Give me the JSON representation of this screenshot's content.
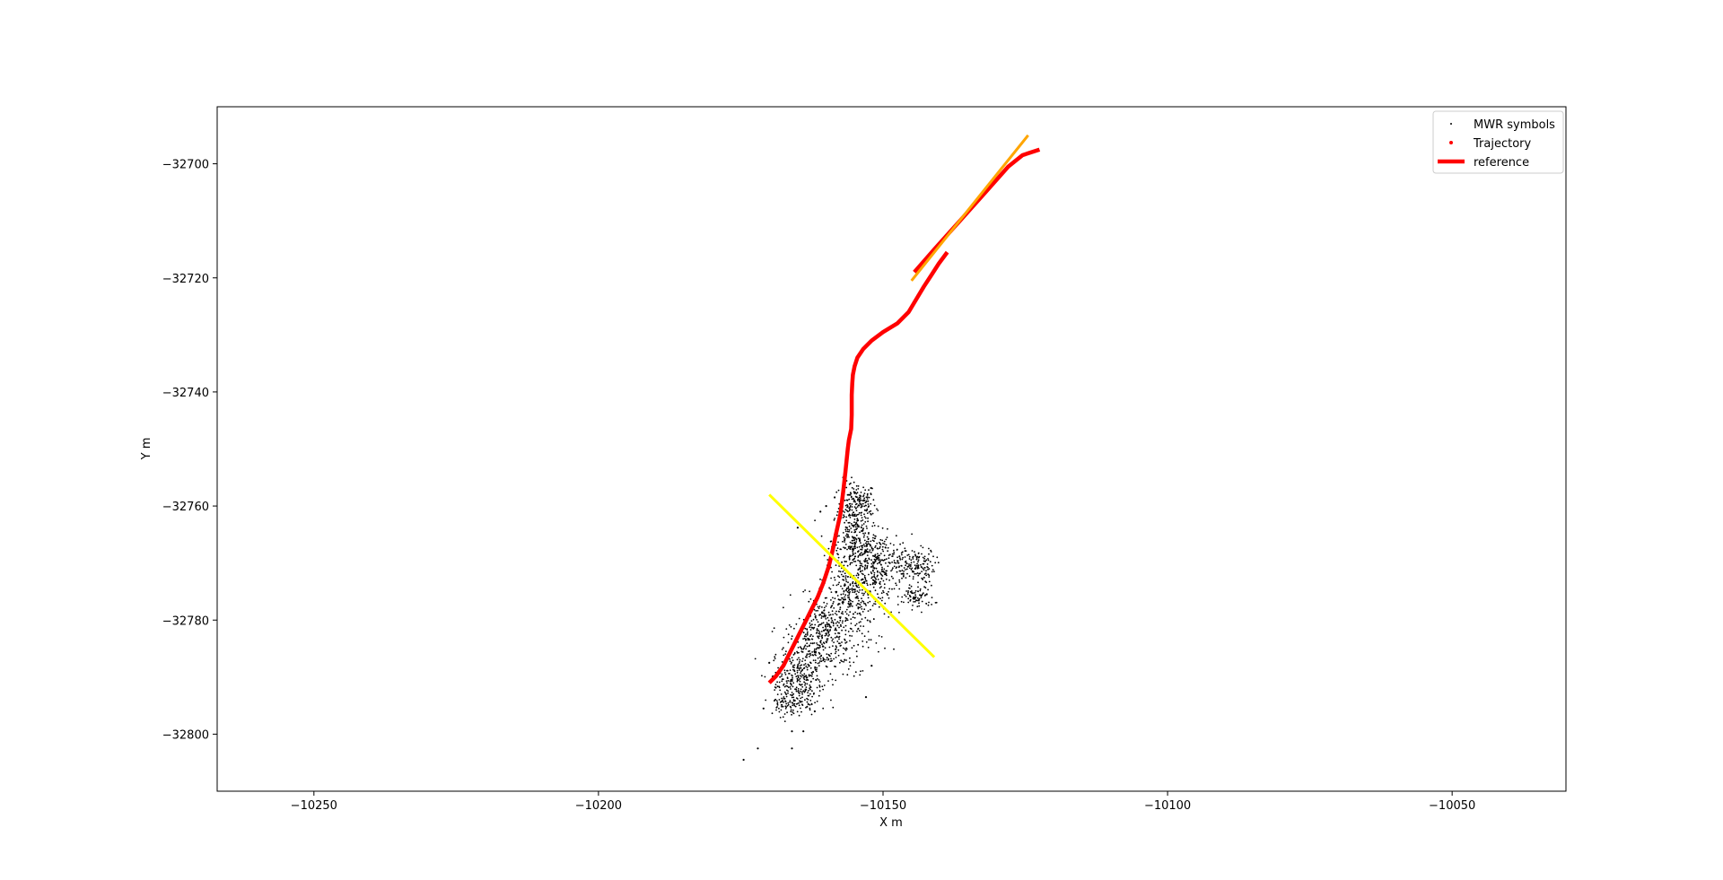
{
  "chart_data": {
    "type": "scatter",
    "title": "",
    "xlabel": "X  m",
    "ylabel": "Y  m",
    "xlim": [
      -10267,
      -10030
    ],
    "ylim": [
      -32810,
      -32690
    ],
    "y_inverted": true,
    "grid": false,
    "legend_position": "top-right",
    "xticks": [
      -10250,
      -10200,
      -10150,
      -10100,
      -10050
    ],
    "yticks": [
      -32700,
      -32720,
      -32740,
      -32760,
      -32780,
      -32800
    ],
    "xtick_labels": [
      "−10250",
      "−10200",
      "−10150",
      "−10100",
      "−10050"
    ],
    "ytick_labels": [
      "−32700",
      "−32720",
      "−32740",
      "−32760",
      "−32780",
      "−32800"
    ],
    "legend": [
      {
        "label": "MWR symbols",
        "kind": "scatter-small",
        "color": "#000000"
      },
      {
        "label": "Trajectory",
        "kind": "scatter",
        "color": "#ff0000"
      },
      {
        "label": "reference",
        "kind": "line",
        "color": "#ff0000"
      }
    ],
    "series": [
      {
        "name": "MWR symbols",
        "kind": "scatter-small",
        "color": "#000000",
        "clusters": [
          {
            "cx": -10154.5,
            "cy": -32759.5,
            "sx": 1.6,
            "sy": 1.8,
            "n": 160
          },
          {
            "cx": -10155.0,
            "cy": -32766.0,
            "sx": 2.0,
            "sy": 3.0,
            "n": 260
          },
          {
            "cx": -10151.0,
            "cy": -32770.0,
            "sx": 3.0,
            "sy": 2.5,
            "n": 300
          },
          {
            "cx": -10144.5,
            "cy": -32770.5,
            "sx": 1.8,
            "sy": 1.5,
            "n": 140
          },
          {
            "cx": -10144.0,
            "cy": -32776.0,
            "sx": 1.5,
            "sy": 1.0,
            "n": 80
          },
          {
            "cx": -10155.0,
            "cy": -32776.0,
            "sx": 3.0,
            "sy": 2.5,
            "n": 260
          },
          {
            "cx": -10160.0,
            "cy": -32781.0,
            "sx": 2.5,
            "sy": 2.5,
            "n": 220
          },
          {
            "cx": -10163.0,
            "cy": -32786.0,
            "sx": 2.5,
            "sy": 2.5,
            "n": 220
          },
          {
            "cx": -10165.0,
            "cy": -32791.0,
            "sx": 2.2,
            "sy": 2.0,
            "n": 180
          },
          {
            "cx": -10166.0,
            "cy": -32794.5,
            "sx": 2.0,
            "sy": 1.2,
            "n": 100
          },
          {
            "cx": -10156.0,
            "cy": -32785.0,
            "sx": 3.0,
            "sy": 3.0,
            "n": 60
          }
        ],
        "points": [
          [
            -10174.5,
            -32804.5
          ],
          [
            -10172.0,
            -32802.5
          ],
          [
            -10166.0,
            -32802.5
          ],
          [
            -10166.0,
            -32799.5
          ],
          [
            -10164.0,
            -32799.5
          ],
          [
            -10165.0,
            -32763.8
          ],
          [
            -10161.0,
            -32761.0
          ],
          [
            -10160.0,
            -32760.0
          ],
          [
            -10158.5,
            -32758.5
          ],
          [
            -10157.0,
            -32755.0
          ],
          [
            -10152.0,
            -32788.0
          ],
          [
            -10153.0,
            -32793.5
          ],
          [
            -10170.0,
            -32787.5
          ],
          [
            -10171.0,
            -32795.5
          ],
          [
            -10162.0,
            -32796.0
          ]
        ]
      },
      {
        "name": "Trajectory",
        "kind": "line",
        "color": "#ff0000",
        "width": 4.5,
        "x": [
          -10170.0,
          -10168.8,
          -10167.5,
          -10166.5,
          -10165.5,
          -10164.5,
          -10163.5,
          -10162.5,
          -10161.5,
          -10160.5,
          -10159.5,
          -10158.8,
          -10158.3,
          -10157.5,
          -10157.0,
          -10156.6,
          -10156.4,
          -10156.2,
          -10156.0,
          -10155.6,
          -10155.5,
          -10155.5,
          -10155.5,
          -10155.4,
          -10155.3,
          -10155.0,
          -10154.5,
          -10153.5,
          -10152.0,
          -10150.0,
          -10147.5,
          -10145.5,
          -10144.0,
          -10142.8,
          -10141.5,
          -10140.2,
          -10138.7
        ],
        "y": [
          -32791.0,
          -32789.8,
          -32788.0,
          -32786.0,
          -32784.0,
          -32782.0,
          -32780.0,
          -32778.0,
          -32776.0,
          -32773.5,
          -32770.5,
          -32767.5,
          -32765.0,
          -32761.5,
          -32757.5,
          -32754.0,
          -32752.0,
          -32750.0,
          -32748.5,
          -32746.5,
          -32744.0,
          -32742.0,
          -32740.5,
          -32738.5,
          -32737.0,
          -32735.5,
          -32734.0,
          -32732.5,
          -32731.0,
          -32729.5,
          -32728.0,
          -32726.0,
          -32723.5,
          -32721.5,
          -32719.5,
          -32717.5,
          -32715.5
        ]
      },
      {
        "name": "Trajectory (northeast)",
        "kind": "line",
        "color": "#ff0000",
        "width": 4.5,
        "x": [
          -10144.5,
          -10141.0,
          -10136.5,
          -10132.0,
          -10128.0,
          -10125.5,
          -10122.5
        ],
        "y": [
          -32719.0,
          -32715.0,
          -32710.0,
          -32705.0,
          -32700.5,
          -32698.5,
          -32697.5
        ]
      },
      {
        "name": "orange reference",
        "kind": "line",
        "color": "#ffa500",
        "width": 3,
        "x": [
          -10145.0,
          -10124.5
        ],
        "y": [
          -32720.5,
          -32695.0
        ]
      },
      {
        "name": "yellow reference",
        "kind": "line",
        "color": "#ffff00",
        "width": 3,
        "x": [
          -10170.0,
          -10141.0
        ],
        "y": [
          -32758.0,
          -32786.5
        ]
      }
    ]
  }
}
